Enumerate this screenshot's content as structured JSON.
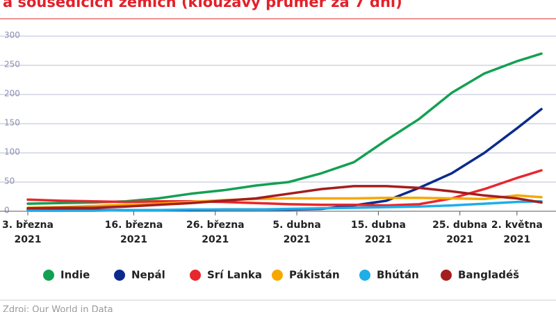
{
  "chart_data": {
    "type": "line",
    "title": "a sousedících zemích (klouzavý průměr za 7 dní)",
    "source": "Zdroj: Our World in Data",
    "x": [
      "2021-03-03",
      "2021-03-07",
      "2021-03-11",
      "2021-03-15",
      "2021-03-19",
      "2021-03-23",
      "2021-03-27",
      "2021-03-31",
      "2021-04-04",
      "2021-04-08",
      "2021-04-12",
      "2021-04-16",
      "2021-04-20",
      "2021-04-24",
      "2021-04-28",
      "2021-05-02",
      "2021-05-05"
    ],
    "xlim": [
      "2021-03-03",
      "2021-05-05"
    ],
    "xticks": [
      {
        "value": "2021-03-03",
        "label": [
          "3. března",
          "2021"
        ]
      },
      {
        "value": "2021-03-16",
        "label": [
          "16. března",
          "2021"
        ]
      },
      {
        "value": "2021-03-26",
        "label": [
          "26. března",
          "2021"
        ]
      },
      {
        "value": "2021-04-05",
        "label": [
          "5. dubna",
          "2021"
        ]
      },
      {
        "value": "2021-04-15",
        "label": [
          "15. dubna",
          "2021"
        ]
      },
      {
        "value": "2021-04-25",
        "label": [
          "25. dubna",
          "2021"
        ]
      },
      {
        "value": "2021-05-02",
        "label": [
          "2. května",
          "2021"
        ]
      }
    ],
    "ylim": [
      0,
      300
    ],
    "yticks": [
      0,
      50,
      100,
      150,
      200,
      250,
      300
    ],
    "grid": true,
    "series": [
      {
        "name": "Indie",
        "color": "#13a052",
        "values": [
          13,
          14,
          15,
          17,
          22,
          30,
          36,
          44,
          50,
          65,
          84,
          122,
          158,
          203,
          236,
          257,
          270
        ]
      },
      {
        "name": "Nepál",
        "color": "#0b2b8c",
        "values": [
          2,
          2,
          2,
          2,
          2,
          2,
          3,
          3,
          3,
          4,
          10,
          18,
          40,
          65,
          100,
          142,
          175
        ]
      },
      {
        "name": "Srí Lanka",
        "color": "#e8262e",
        "values": [
          20,
          18,
          17,
          16,
          17,
          17,
          16,
          14,
          12,
          11,
          11,
          10,
          12,
          22,
          38,
          57,
          70
        ]
      },
      {
        "name": "Pákistán",
        "color": "#f6a800",
        "values": [
          6,
          7,
          9,
          11,
          13,
          16,
          19,
          21,
          22,
          22,
          22,
          23,
          23,
          22,
          21,
          27,
          24
        ]
      },
      {
        "name": "Bhútán",
        "color": "#1eaee8",
        "values": [
          1,
          1,
          1,
          2,
          2,
          3,
          3,
          3,
          4,
          5,
          6,
          7,
          8,
          10,
          13,
          16,
          17
        ]
      },
      {
        "name": "Bangladéš",
        "color": "#a51d1d",
        "values": [
          5,
          6,
          6,
          8,
          11,
          14,
          18,
          22,
          30,
          38,
          43,
          43,
          40,
          34,
          27,
          22,
          15
        ]
      }
    ]
  }
}
